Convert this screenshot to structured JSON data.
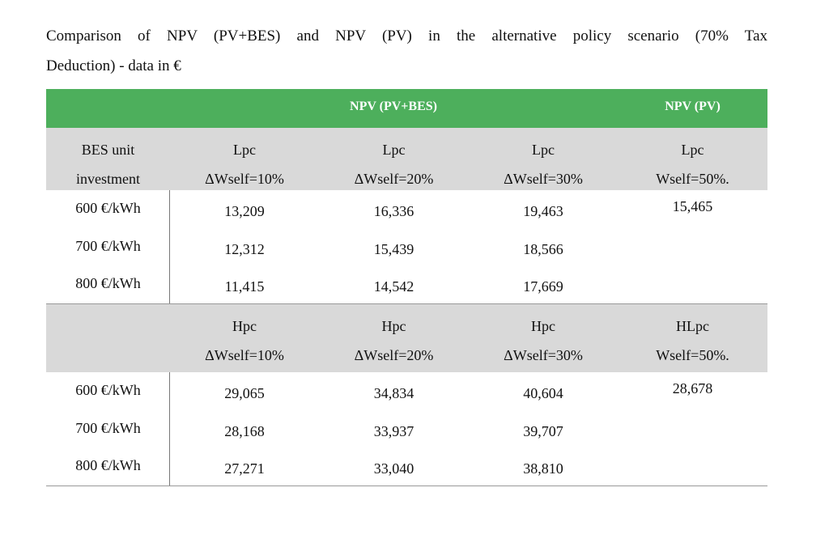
{
  "caption": {
    "line1": "Comparison of NPV (PV+BES) and NPV (PV) in the alternative policy scenario (70% Tax",
    "line2": "Deduction) - data in €"
  },
  "header": {
    "npv_pv_bes": "NPV (PV+BES)",
    "npv_pv": "NPV (PV)",
    "color": "#4daf5c"
  },
  "section1": {
    "col0": [
      "BES unit",
      "investment"
    ],
    "col1": [
      "Lpc",
      "ΔWself=10%"
    ],
    "col2": [
      "Lpc",
      "ΔWself=20%"
    ],
    "col3": [
      "Lpc",
      "ΔWself=30%"
    ],
    "col4": [
      "Lpc",
      "Wself=50%."
    ],
    "rows": [
      {
        "label": "600 €/kWh",
        "v1": "13,209",
        "v2": "16,336",
        "v3": "19,463"
      },
      {
        "label": "700 €/kWh",
        "v1": "12,312",
        "v2": "15,439",
        "v3": "18,566"
      },
      {
        "label": "800 €/kWh",
        "v1": "11,415",
        "v2": "14,542",
        "v3": "17,669"
      }
    ],
    "pv_value": "15,465"
  },
  "section2": {
    "col1": [
      "Hpc",
      "ΔWself=10%"
    ],
    "col2": [
      "Hpc",
      "ΔWself=20%"
    ],
    "col3": [
      "Hpc",
      "ΔWself=30%"
    ],
    "col4": [
      "HLpc",
      "Wself=50%."
    ],
    "rows": [
      {
        "label": "600 €/kWh",
        "v1": "29,065",
        "v2": "34,834",
        "v3": "40,604"
      },
      {
        "label": "700 €/kWh",
        "v1": "28,168",
        "v2": "33,937",
        "v3": "39,707"
      },
      {
        "label": "800 €/kWh",
        "v1": "27,271",
        "v2": "33,040",
        "v3": "38,810"
      }
    ],
    "pv_value": "28,678"
  }
}
